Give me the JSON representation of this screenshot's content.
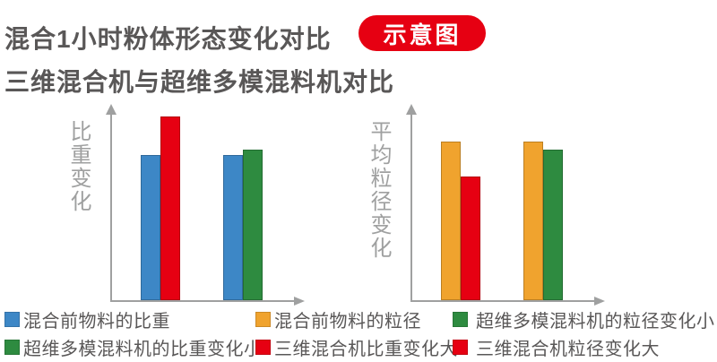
{
  "page": {
    "title": "混合1小时粉体形态变化对比",
    "badge": "示意图",
    "subtitle": "三维混合机与超维多模混料机对比"
  },
  "colors": {
    "blue": "#3D87C6",
    "red": "#E60012",
    "orange": "#F0A32E",
    "green": "#2E8B40",
    "axis": "#9FA0A0",
    "text": "#595757",
    "badge_bg": "#E60012",
    "badge_text": "#FFFFFF"
  },
  "chart_data": [
    {
      "type": "bar",
      "ylabel": "比重变化",
      "xlabel": "",
      "ylim": [
        0,
        100
      ],
      "gridlines": false,
      "groups": [
        {
          "bars": [
            {
              "series": "混合前物料的比重",
              "color": "blue",
              "value": 75
            },
            {
              "series": "三维混合机比重变化大",
              "color": "red",
              "value": 95
            }
          ]
        },
        {
          "bars": [
            {
              "series": "混合前物料的比重",
              "color": "blue",
              "value": 75
            },
            {
              "series": "超维多模混料机的比重变化小",
              "color": "green",
              "value": 78
            }
          ]
        }
      ]
    },
    {
      "type": "bar",
      "ylabel": "平均粒径变化",
      "xlabel": "",
      "ylim": [
        0,
        100
      ],
      "gridlines": false,
      "groups": [
        {
          "bars": [
            {
              "series": "混合前物料的粒径",
              "color": "orange",
              "value": 82
            },
            {
              "series": "三维混合机粒径变化大",
              "color": "red",
              "value": 64
            }
          ]
        },
        {
          "bars": [
            {
              "series": "混合前物料的粒径",
              "color": "orange",
              "value": 82
            },
            {
              "series": "超维多模混料机的粒径变化小",
              "color": "green",
              "value": 78
            }
          ]
        }
      ]
    }
  ],
  "legend": {
    "rows": [
      [
        {
          "color": "blue",
          "label": "混合前物料的比重"
        },
        {
          "color": "orange",
          "label": "混合前物料的粒径"
        },
        {
          "color": "green",
          "label": "超维多模混料机的粒径变化小"
        }
      ],
      [
        {
          "color": "green",
          "label": "超维多模混料机的比重变化小"
        },
        {
          "color": "red",
          "label": "三维混合机比重变化大"
        },
        {
          "color": "red",
          "label": "三维混合机粒径变化大"
        }
      ]
    ]
  }
}
